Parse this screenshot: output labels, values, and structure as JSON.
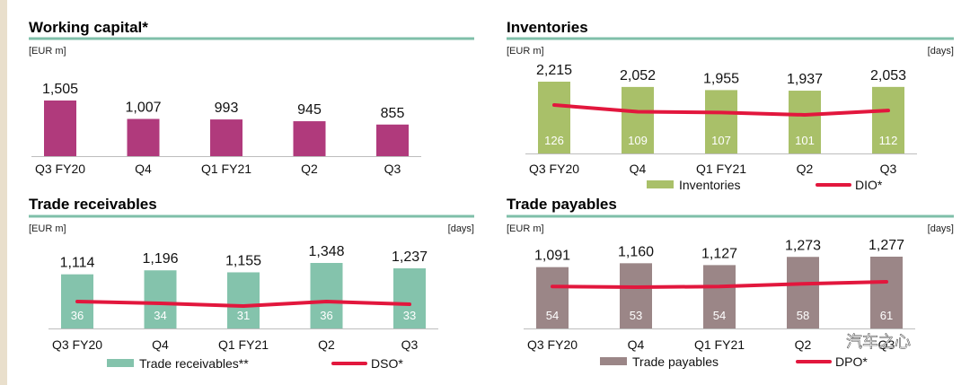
{
  "watermark": "汽车之心",
  "chart_data": [
    {
      "type": "bar",
      "title": "Working capital*",
      "unit_left": "[EUR m]",
      "unit_right": "",
      "categories": [
        "Q3 FY20",
        "Q4",
        "Q1 FY21",
        "Q2",
        "Q3"
      ],
      "values": [
        1505,
        1007,
        993,
        945,
        855
      ],
      "value_labels": [
        "1,505",
        "1,007",
        "993",
        "945",
        "855"
      ],
      "bar_color": "#b03a7c",
      "legend": null
    },
    {
      "type": "bar",
      "title": "Inventories",
      "unit_left": "[EUR m]",
      "unit_right": "[days]",
      "categories": [
        "Q3 FY20",
        "Q4",
        "Q1 FY21",
        "Q2",
        "Q3"
      ],
      "values": [
        2215,
        2052,
        1955,
        1937,
        2053
      ],
      "value_labels": [
        "2,215",
        "2,052",
        "1,955",
        "1,937",
        "2,053"
      ],
      "line_values": [
        126,
        109,
        107,
        101,
        112
      ],
      "bar_color": "#a9c069",
      "line_color": "#e2173d",
      "legend": {
        "bar": "Inventories",
        "line": "DIO*"
      }
    },
    {
      "type": "bar",
      "title": "Trade receivables",
      "unit_left": "[EUR m]",
      "unit_right": "[days]",
      "categories": [
        "Q3 FY20",
        "Q4",
        "Q1 FY21",
        "Q2",
        "Q3"
      ],
      "values": [
        1114,
        1196,
        1155,
        1348,
        1237
      ],
      "value_labels": [
        "1,114",
        "1,196",
        "1,155",
        "1,348",
        "1,237"
      ],
      "line_values": [
        36,
        34,
        31,
        36,
        33
      ],
      "bar_color": "#84c3ac",
      "line_color": "#e2173d",
      "legend": {
        "bar": "Trade receivables**",
        "line": "DSO*"
      }
    },
    {
      "type": "bar",
      "title": "Trade payables",
      "unit_left": "[EUR m]",
      "unit_right": "[days]",
      "categories": [
        "Q3 FY20",
        "Q4",
        "Q1 FY21",
        "Q2",
        "Q3"
      ],
      "values": [
        1091,
        1160,
        1127,
        1273,
        1277
      ],
      "value_labels": [
        "1,091",
        "1,160",
        "1,127",
        "1,273",
        "1,277"
      ],
      "line_values": [
        54,
        53,
        54,
        58,
        61
      ],
      "bar_color": "#9b8687",
      "line_color": "#e2173d",
      "legend": {
        "bar": "Trade payables",
        "line": "DPO*"
      }
    }
  ]
}
